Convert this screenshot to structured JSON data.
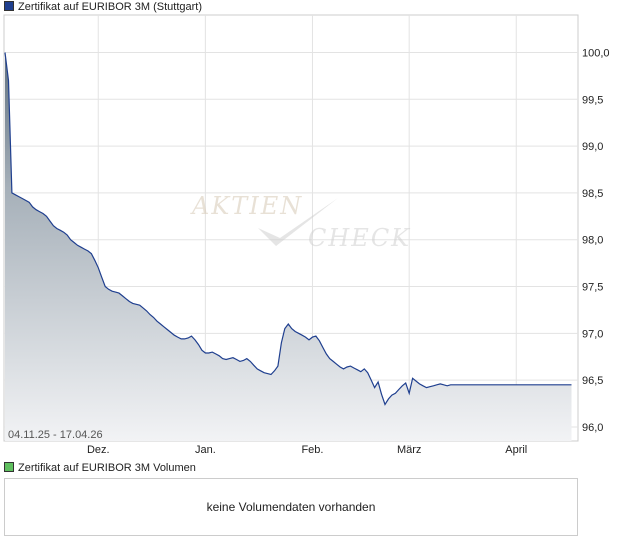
{
  "price_legend": {
    "label": "Zertifikat auf EURIBOR 3M (Stuttgart)",
    "color": "#1f3f8f"
  },
  "volume_legend": {
    "label": "Zertifikat auf EURIBOR 3M Volumen",
    "color": "#5fbf5f"
  },
  "volume_message": "keine Volumendaten vorhanden",
  "watermark": {
    "line1": "AKTIEN",
    "line2": "CHECK"
  },
  "chart_data": {
    "type": "area",
    "title": "Zertifikat auf EURIBOR 3M (Stuttgart)",
    "date_range": "04.11.25 - 17.04.26",
    "x_tick_labels": [
      "Dez.",
      "Jan.",
      "Feb.",
      "März",
      "April"
    ],
    "x_tick_days": [
      27,
      58,
      89,
      117,
      148
    ],
    "x_range_days": [
      0,
      165
    ],
    "y_ticks": [
      96.0,
      96.5,
      97.0,
      97.5,
      98.0,
      98.5,
      99.0,
      99.5,
      100.0
    ],
    "y_tick_labels": [
      "96,0",
      "96,5",
      "97,0",
      "97,5",
      "98,0",
      "98,5",
      "99,0",
      "99,5",
      "100,0"
    ],
    "ylim": [
      95.85,
      100.4
    ],
    "grid": true,
    "line_color": "#1f3f8f",
    "series": [
      {
        "x_days": [
          0,
          1,
          2,
          3,
          4,
          5,
          6,
          7,
          8,
          9,
          10,
          11,
          12,
          13,
          14,
          15,
          16,
          17,
          18,
          19,
          20,
          21,
          22,
          23,
          24,
          25,
          26,
          27,
          28,
          29,
          30,
          31,
          32,
          33,
          34,
          35,
          36,
          37,
          38,
          39,
          40,
          41,
          42,
          43,
          44,
          45,
          46,
          47,
          48,
          49,
          50,
          51,
          52,
          53,
          54,
          55,
          56,
          57,
          58,
          59,
          60,
          61,
          62,
          63,
          64,
          65,
          66,
          67,
          68,
          69,
          70,
          71,
          72,
          73,
          74,
          75,
          76,
          77,
          78,
          79,
          80,
          81,
          82,
          83,
          84,
          85,
          86,
          87,
          88,
          89,
          90,
          91,
          92,
          93,
          94,
          95,
          96,
          97,
          98,
          99,
          100,
          101,
          102,
          103,
          104,
          105,
          106,
          107,
          108,
          109,
          110,
          111,
          112,
          113,
          114,
          115,
          116,
          117,
          118,
          119,
          120,
          121,
          122,
          123,
          124,
          125,
          126,
          127,
          128,
          129,
          130,
          131,
          132,
          133,
          134,
          135,
          136,
          137,
          138,
          139,
          140,
          141,
          142,
          143,
          144,
          145,
          146,
          147,
          148,
          149,
          150,
          151,
          152,
          153,
          154,
          155,
          156,
          157,
          158,
          159,
          160,
          161,
          162,
          163,
          164
        ],
        "values": [
          100.0,
          99.7,
          98.5,
          98.48,
          98.46,
          98.44,
          98.42,
          98.4,
          98.35,
          98.32,
          98.3,
          98.28,
          98.25,
          98.2,
          98.15,
          98.12,
          98.1,
          98.08,
          98.05,
          98.0,
          97.97,
          97.94,
          97.92,
          97.9,
          97.88,
          97.85,
          97.78,
          97.7,
          97.6,
          97.5,
          97.47,
          97.45,
          97.44,
          97.43,
          97.4,
          97.37,
          97.34,
          97.32,
          97.31,
          97.3,
          97.27,
          97.24,
          97.2,
          97.17,
          97.13,
          97.1,
          97.07,
          97.04,
          97.01,
          96.98,
          96.96,
          96.94,
          96.94,
          96.95,
          96.97,
          96.93,
          96.88,
          96.82,
          96.79,
          96.79,
          96.8,
          96.78,
          96.76,
          96.73,
          96.72,
          96.73,
          96.74,
          96.72,
          96.7,
          96.71,
          96.73,
          96.7,
          96.66,
          96.62,
          96.6,
          96.58,
          96.57,
          96.56,
          96.6,
          96.65,
          96.9,
          97.05,
          97.1,
          97.05,
          97.02,
          97.0,
          96.98,
          96.96,
          96.93,
          96.96,
          96.97,
          96.92,
          96.85,
          96.78,
          96.73,
          96.7,
          96.67,
          96.64,
          96.62,
          96.64,
          96.65,
          96.63,
          96.61,
          96.59,
          96.62,
          96.58,
          96.5,
          96.42,
          96.48,
          96.35,
          96.24,
          96.3,
          96.34,
          96.36,
          96.4,
          96.44,
          96.47,
          96.36,
          96.52,
          96.49,
          96.46,
          96.44,
          96.42,
          96.43,
          96.44,
          96.45,
          96.46,
          96.45,
          96.44,
          96.45,
          96.45,
          96.45,
          96.45,
          96.45,
          96.45,
          96.45,
          96.45,
          96.45,
          96.45,
          96.45,
          96.45,
          96.45,
          96.45,
          96.45,
          96.45,
          96.45,
          96.45,
          96.45,
          96.45,
          96.45,
          96.45,
          96.45,
          96.45,
          96.45,
          96.45,
          96.45,
          96.45,
          96.45,
          96.45,
          96.45,
          96.45,
          96.45,
          96.45,
          96.45,
          96.45
        ]
      }
    ]
  }
}
